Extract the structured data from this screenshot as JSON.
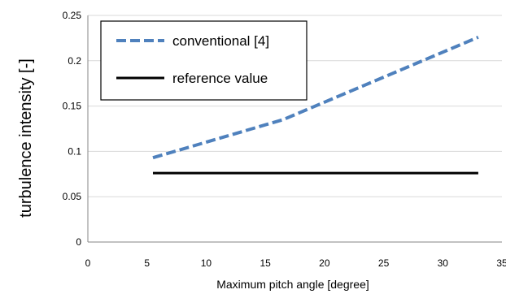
{
  "chart_data": {
    "type": "line",
    "xlabel": "Maximum pitch angle [degree]",
    "ylabel": "turbulence intensity [-]",
    "xlim": [
      0,
      35
    ],
    "ylim": [
      0,
      0.25
    ],
    "x_ticks": [
      0,
      5,
      10,
      15,
      20,
      25,
      30,
      35
    ],
    "y_ticks": [
      0,
      0.05,
      0.1,
      0.15,
      0.2,
      0.25
    ],
    "x_tick_labels": [
      "0",
      "5",
      "10",
      "15",
      "20",
      "25",
      "30",
      "35"
    ],
    "y_tick_labels": [
      "0",
      "0.05",
      "0.1",
      "0.15",
      "0.2",
      "0.25"
    ],
    "grid": "horizontal",
    "legend_position": "top-left",
    "series": [
      {
        "name": "conventional [4]",
        "style": "dashed",
        "color": "#4f81bd",
        "x": [
          5.5,
          16.5,
          33
        ],
        "y": [
          0.093,
          0.135,
          0.226
        ]
      },
      {
        "name": "reference value",
        "style": "solid",
        "color": "#000000",
        "x": [
          5.5,
          16.5,
          33
        ],
        "y": [
          0.076,
          0.076,
          0.076
        ]
      }
    ]
  }
}
